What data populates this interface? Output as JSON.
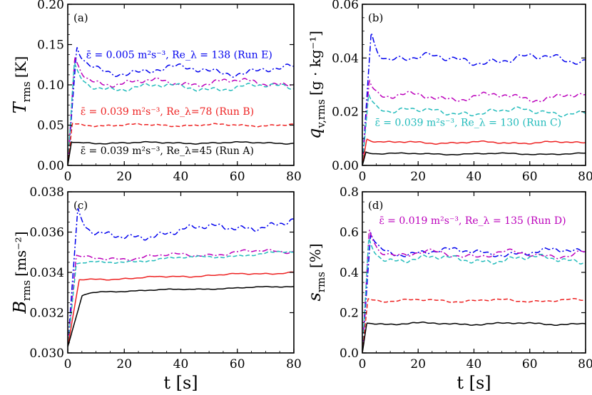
{
  "chart_data": [
    {
      "type": "line",
      "panel_label": "(a)",
      "ylabel": "T_rms [K]",
      "ylabel_main": "T",
      "ylabel_sub": "rms",
      "ylabel_unit": "[K]",
      "xlabel": "",
      "xlim": [
        0,
        80
      ],
      "ylim": [
        0,
        0.2
      ],
      "xticks": [
        0,
        20,
        40,
        60,
        80
      ],
      "xtick_labels": [
        "0",
        "20",
        "40",
        "60",
        "80"
      ],
      "yticks": [
        0,
        0.05,
        0.1,
        0.15,
        0.2
      ],
      "ytick_labels": [
        "0.00",
        "0.05",
        "0.10",
        "0.15",
        "0.20"
      ],
      "series": [
        {
          "name": "Run E",
          "color": "#0000ee",
          "dash": "dashdot",
          "peak": [
            3.2,
            0.147
          ],
          "level": 0.118,
          "amp": 0.008
        },
        {
          "name": "Run D",
          "color": "#bb00bb",
          "dash": "dashdot",
          "peak": [
            2.5,
            0.135
          ],
          "level": 0.103,
          "amp": 0.006
        },
        {
          "name": "Run C",
          "color": "#22bbbb",
          "dash": "dashed",
          "peak": [
            2.3,
            0.126
          ],
          "level": 0.097,
          "amp": 0.006
        },
        {
          "name": "Run B",
          "color": "#ee2222",
          "dash": "dashed",
          "peak": [
            1.6,
            0.052
          ],
          "level": 0.05,
          "amp": 0.002
        },
        {
          "name": "Run A",
          "color": "#000000",
          "dash": "solid",
          "peak": [
            1.3,
            0.029
          ],
          "level": 0.028,
          "amp": 0.0015
        }
      ],
      "annotations": [
        {
          "text": "ε̄ = 0.005 m²s⁻³, Re_λ = 138 (Run E)",
          "color": "#0000ee",
          "at": [
            6.5,
            0.133
          ]
        },
        {
          "text": "ε̄ = 0.039 m²s⁻³, Re_λ=78 (Run B)",
          "color": "#ee2222",
          "at": [
            4.5,
            0.063
          ]
        },
        {
          "text": "ε̄ = 0.039 m²s⁻³, Re_λ=45 (Run A)",
          "color": "#000000",
          "at": [
            4.5,
            0.014
          ]
        }
      ]
    },
    {
      "type": "line",
      "panel_label": "(b)",
      "ylabel": "q_v,rms [g · kg⁻¹]",
      "ylabel_main": "q",
      "ylabel_sub": "v,rms",
      "ylabel_unit": "[g · kg⁻¹]",
      "xlabel": "",
      "xlim": [
        0,
        80
      ],
      "ylim": [
        0,
        0.06
      ],
      "xticks": [
        0,
        20,
        40,
        60,
        80
      ],
      "xtick_labels": [
        "0",
        "20",
        "40",
        "60",
        "80"
      ],
      "yticks": [
        0,
        0.02,
        0.04,
        0.06
      ],
      "ytick_labels": [
        "0.00",
        "0.02",
        "0.04",
        "0.06"
      ],
      "series": [
        {
          "name": "Run E",
          "color": "#0000ee",
          "dash": "dashdot",
          "peak": [
            3.2,
            0.05
          ],
          "level": 0.0395,
          "amp": 0.0025
        },
        {
          "name": "Run D",
          "color": "#bb00bb",
          "dash": "dashdot",
          "peak": [
            2.5,
            0.032
          ],
          "level": 0.0255,
          "amp": 0.002
        },
        {
          "name": "Run C",
          "color": "#22bbbb",
          "dash": "dashed",
          "peak": [
            2.3,
            0.027
          ],
          "level": 0.02,
          "amp": 0.0018
        },
        {
          "name": "Run B",
          "color": "#ee2222",
          "dash": "solid",
          "peak": [
            1.6,
            0.01
          ],
          "level": 0.0085,
          "amp": 0.0006
        },
        {
          "name": "Run A",
          "color": "#000000",
          "dash": "solid",
          "peak": [
            1.3,
            0.005
          ],
          "level": 0.0043,
          "amp": 0.0004
        }
      ],
      "annotations": [
        {
          "text": "ε̄ = 0.039 m²s⁻³, Re_λ = 130 (Run C)",
          "color": "#22bbbb",
          "at": [
            4.5,
            0.0148
          ]
        }
      ]
    },
    {
      "type": "line",
      "panel_label": "(c)",
      "ylabel": "B_rms [ms⁻²]",
      "ylabel_main": "B",
      "ylabel_sub": "rms",
      "ylabel_unit": "[ms⁻²]",
      "xlabel": "t [s]",
      "xlim": [
        0,
        80
      ],
      "ylim": [
        0.03,
        0.038
      ],
      "xticks": [
        0,
        20,
        40,
        60,
        80
      ],
      "xtick_labels": [
        "0",
        "20",
        "40",
        "60",
        "80"
      ],
      "yticks": [
        0.03,
        0.032,
        0.034,
        0.036,
        0.038
      ],
      "ytick_labels": [
        "0.030",
        "0.032",
        "0.034",
        "0.036",
        "0.038"
      ],
      "series": [
        {
          "name": "Run E",
          "color": "#0000ee",
          "dash": "dashdot",
          "peak": [
            3.5,
            0.0371
          ],
          "level": 0.0356,
          "amp": 0.0003,
          "rise": 0.0009
        },
        {
          "name": "Run D",
          "color": "#bb00bb",
          "dash": "dashdot",
          "peak": [
            3.0,
            0.0348
          ],
          "level": 0.0346,
          "amp": 0.00015,
          "rise": 0.0005
        },
        {
          "name": "Run C",
          "color": "#22bbbb",
          "dash": "dashed",
          "peak": [
            3.0,
            0.0344
          ],
          "level": 0.0344,
          "amp": 0.0001,
          "rise": 0.0006
        },
        {
          "name": "Run B",
          "color": "#ee2222",
          "dash": "solid",
          "peak": [
            4.0,
            0.0336
          ],
          "level": 0.0336,
          "amp": 6e-05,
          "rise": 0.0004
        },
        {
          "name": "Run A",
          "color": "#000000",
          "dash": "solid",
          "peak": [
            5.0,
            0.0328
          ],
          "level": 0.033,
          "amp": 4e-05,
          "rise": 0.0003
        }
      ],
      "annotations": []
    },
    {
      "type": "line",
      "panel_label": "(d)",
      "ylabel": "s_rms [%]",
      "ylabel_main": "s",
      "ylabel_sub": "rms",
      "ylabel_unit": "[%]",
      "xlabel": "t [s]",
      "xlim": [
        0,
        80
      ],
      "ylim": [
        0,
        0.8
      ],
      "xticks": [
        0,
        20,
        40,
        60,
        80
      ],
      "xtick_labels": [
        "0",
        "20",
        "40",
        "60",
        "80"
      ],
      "yticks": [
        0,
        0.2,
        0.4,
        0.6,
        0.8
      ],
      "ytick_labels": [
        "0.0",
        "0.2",
        "0.4",
        "0.6",
        "0.8"
      ],
      "series": [
        {
          "name": "Run E",
          "color": "#0000ee",
          "dash": "dashdot",
          "peak": [
            3.0,
            0.6
          ],
          "level": 0.5,
          "amp": 0.025
        },
        {
          "name": "Run D",
          "color": "#bb00bb",
          "dash": "dashdot",
          "peak": [
            2.5,
            0.62
          ],
          "level": 0.49,
          "amp": 0.025
        },
        {
          "name": "Run C",
          "color": "#22bbbb",
          "dash": "dashed",
          "peak": [
            2.3,
            0.57
          ],
          "level": 0.465,
          "amp": 0.025
        },
        {
          "name": "Run B",
          "color": "#ee2222",
          "dash": "dashed",
          "peak": [
            2.0,
            0.27
          ],
          "level": 0.26,
          "amp": 0.01
        },
        {
          "name": "Run A",
          "color": "#000000",
          "dash": "solid",
          "peak": [
            1.6,
            0.15
          ],
          "level": 0.145,
          "amp": 0.008
        }
      ],
      "annotations": [
        {
          "text": "ε̄ = 0.019 m²s⁻³, Re_λ = 135 (Run D)",
          "color": "#bb00bb",
          "at": [
            6.0,
            0.64
          ]
        }
      ]
    }
  ]
}
